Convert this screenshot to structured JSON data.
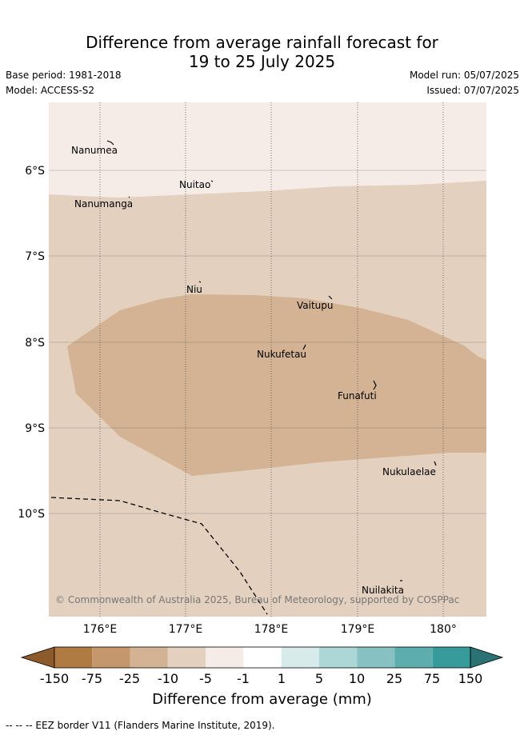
{
  "title": {
    "line1": "Difference from average rainfall forecast for",
    "line2": "19 to 25 July 2025"
  },
  "meta": {
    "base_period": "Base period: 1981-2018",
    "model": "Model: ACCESS-S2",
    "model_run": "Model run: 05/07/2025",
    "issued": "Issued: 07/07/2025"
  },
  "axes": {
    "longitude_labels": [
      "176°E",
      "177°E",
      "178°E",
      "179°E",
      "180°"
    ],
    "latitude_labels": [
      "6°S",
      "7°S",
      "8°S",
      "9°S",
      "10°S"
    ]
  },
  "places": [
    {
      "name": "Nanumea"
    },
    {
      "name": "Nuitao"
    },
    {
      "name": "Nanumanga"
    },
    {
      "name": "Niu"
    },
    {
      "name": "Vaitupu"
    },
    {
      "name": "Nukufetau"
    },
    {
      "name": "Funafuti"
    },
    {
      "name": "Nukulaelae"
    },
    {
      "name": "Nuilakita"
    }
  ],
  "copyright": "© Commonwealth of Australia 2025, Bureau of Meteorology, supported by COSPPac",
  "colorbar": {
    "label": "Difference from average (mm)",
    "ticks": [
      "-150",
      "-75",
      "-25",
      "-10",
      "-5",
      "-1",
      "1",
      "5",
      "10",
      "25",
      "75",
      "150"
    ],
    "colors": [
      "#8c5a2b",
      "#b07a43",
      "#c4986c",
      "#d3b393",
      "#e3d0bf",
      "#f5ece7",
      "#ffffff",
      "#d6ebea",
      "#add7d6",
      "#88c1c2",
      "#5eadae",
      "#379b9c",
      "#2a7273"
    ]
  },
  "footer": "--  --  -- EEZ border V11 (Flanders Marine Institute, 2019)."
}
